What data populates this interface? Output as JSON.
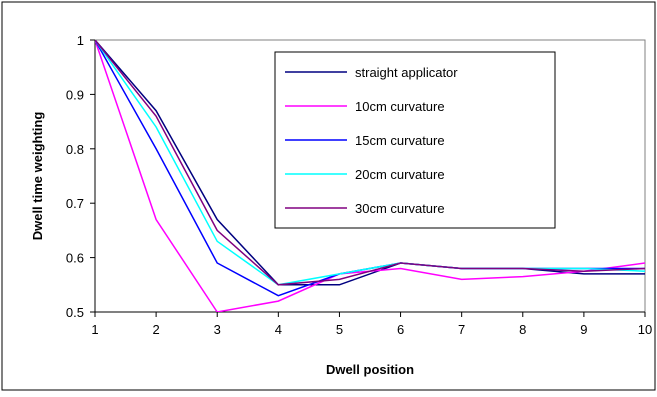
{
  "chart_data": {
    "type": "line",
    "title": "",
    "xlabel": "Dwell position",
    "ylabel": "Dwell time weighting",
    "x": [
      1,
      2,
      3,
      4,
      5,
      6,
      7,
      8,
      9,
      10
    ],
    "xlim": [
      1,
      10
    ],
    "ylim": [
      0.5,
      1
    ],
    "yticks": [
      0.5,
      0.6,
      0.7,
      0.8,
      0.9,
      1
    ],
    "ytick_labels": [
      "0.5",
      "0.6",
      "0.7",
      "0.8",
      "0.9",
      "1"
    ],
    "xtick_labels": [
      "1",
      "2",
      "3",
      "4",
      "5",
      "6",
      "7",
      "8",
      "9",
      "10"
    ],
    "grid": false,
    "legend_position": "top-right",
    "series": [
      {
        "name": "straight applicator",
        "color": "#000080",
        "values": [
          1,
          0.87,
          0.67,
          0.55,
          0.55,
          0.59,
          0.58,
          0.58,
          0.57,
          0.57
        ]
      },
      {
        "name": "10cm curvature",
        "color": "#FF00FF",
        "values": [
          1,
          0.67,
          0.5,
          0.52,
          0.57,
          0.58,
          0.56,
          0.565,
          0.575,
          0.59
        ]
      },
      {
        "name": "15cm curvature",
        "color": "#0000FF",
        "values": [
          1,
          0.8,
          0.59,
          0.53,
          0.57,
          0.59,
          0.58,
          0.58,
          0.58,
          0.58
        ]
      },
      {
        "name": "20cm curvature",
        "color": "#00FFFF",
        "values": [
          1,
          0.84,
          0.63,
          0.55,
          0.57,
          0.59,
          0.58,
          0.58,
          0.58,
          0.575
        ]
      },
      {
        "name": "30cm curvature",
        "color": "#800080",
        "values": [
          1,
          0.86,
          0.65,
          0.55,
          0.56,
          0.59,
          0.58,
          0.58,
          0.575,
          0.58
        ]
      }
    ]
  }
}
